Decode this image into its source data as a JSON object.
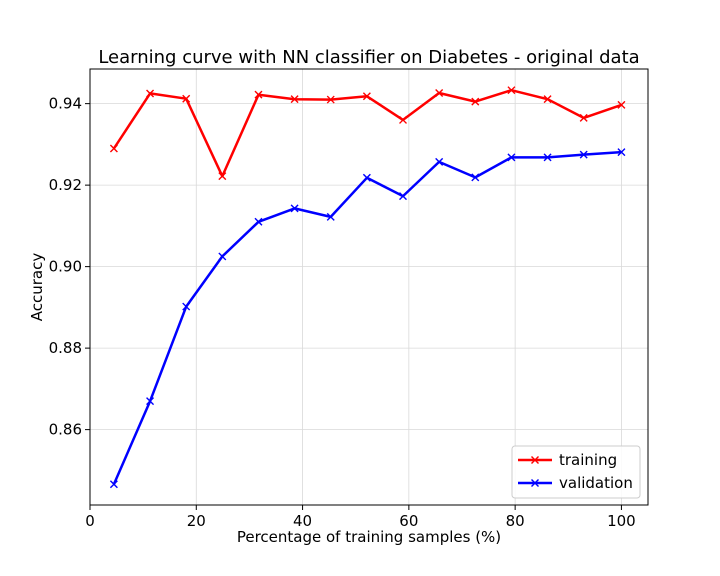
{
  "chart_data": {
    "type": "line",
    "title": "Learning curve with NN classifier on Diabetes - original data",
    "xlabel": "Percentage of training samples (%)",
    "ylabel": "Accuracy",
    "xlim": [
      0,
      105
    ],
    "ylim": [
      0.8415,
      0.9485
    ],
    "x_ticks": [
      0,
      20,
      40,
      60,
      80,
      100
    ],
    "x_tick_labels": [
      "0",
      "20",
      "40",
      "60",
      "80",
      "100"
    ],
    "y_ticks": [
      0.86,
      0.88,
      0.9,
      0.92,
      0.94
    ],
    "y_tick_labels": [
      "0.86",
      "0.88",
      "0.90",
      "0.92",
      "0.94"
    ],
    "grid": true,
    "legend_position": "bottom-right",
    "x": [
      4.5,
      11.3,
      18.1,
      24.9,
      31.7,
      38.5,
      45.3,
      52.1,
      58.9,
      65.7,
      72.5,
      79.3,
      86.1,
      92.9,
      100
    ],
    "series": [
      {
        "name": "training",
        "color": "#ff0000",
        "marker": "x",
        "values": [
          0.929,
          0.9425,
          0.9412,
          0.9222,
          0.9422,
          0.9411,
          0.941,
          0.9418,
          0.936,
          0.9426,
          0.9405,
          0.9433,
          0.9411,
          0.9365,
          0.9397
        ]
      },
      {
        "name": "validation",
        "color": "#0000ff",
        "marker": "x",
        "values": [
          0.8466,
          0.867,
          0.8902,
          0.9025,
          0.911,
          0.9143,
          0.9122,
          0.9218,
          0.9173,
          0.9257,
          0.9219,
          0.9268,
          0.9268,
          0.9275,
          0.9281
        ]
      }
    ]
  }
}
